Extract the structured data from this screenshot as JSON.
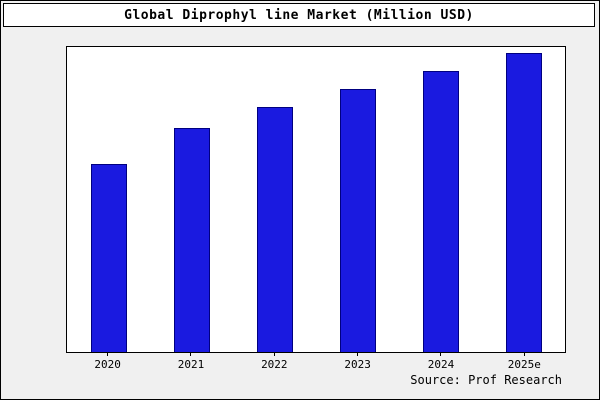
{
  "title": "Global Diprophyl line Market (Million USD)",
  "source": "Source: Prof Research",
  "colors": {
    "bar_fill": "#1a1ae0",
    "bar_edge": "#000080",
    "figure_background": "#f0f0f0",
    "plot_background": "#ffffff",
    "frame": "#000000"
  },
  "chart_data": {
    "type": "bar",
    "categories": [
      "2020",
      "2021",
      "2022",
      "2023",
      "2024",
      "2025e"
    ],
    "values": [
      63,
      75,
      82,
      88,
      94,
      100
    ],
    "title": "Global Diprophyl line Market (Million USD)",
    "xlabel": "",
    "ylabel": "",
    "ylim": [
      0,
      102
    ],
    "grid": false,
    "legend": false,
    "annotations": [
      "Source: Prof Research"
    ]
  }
}
